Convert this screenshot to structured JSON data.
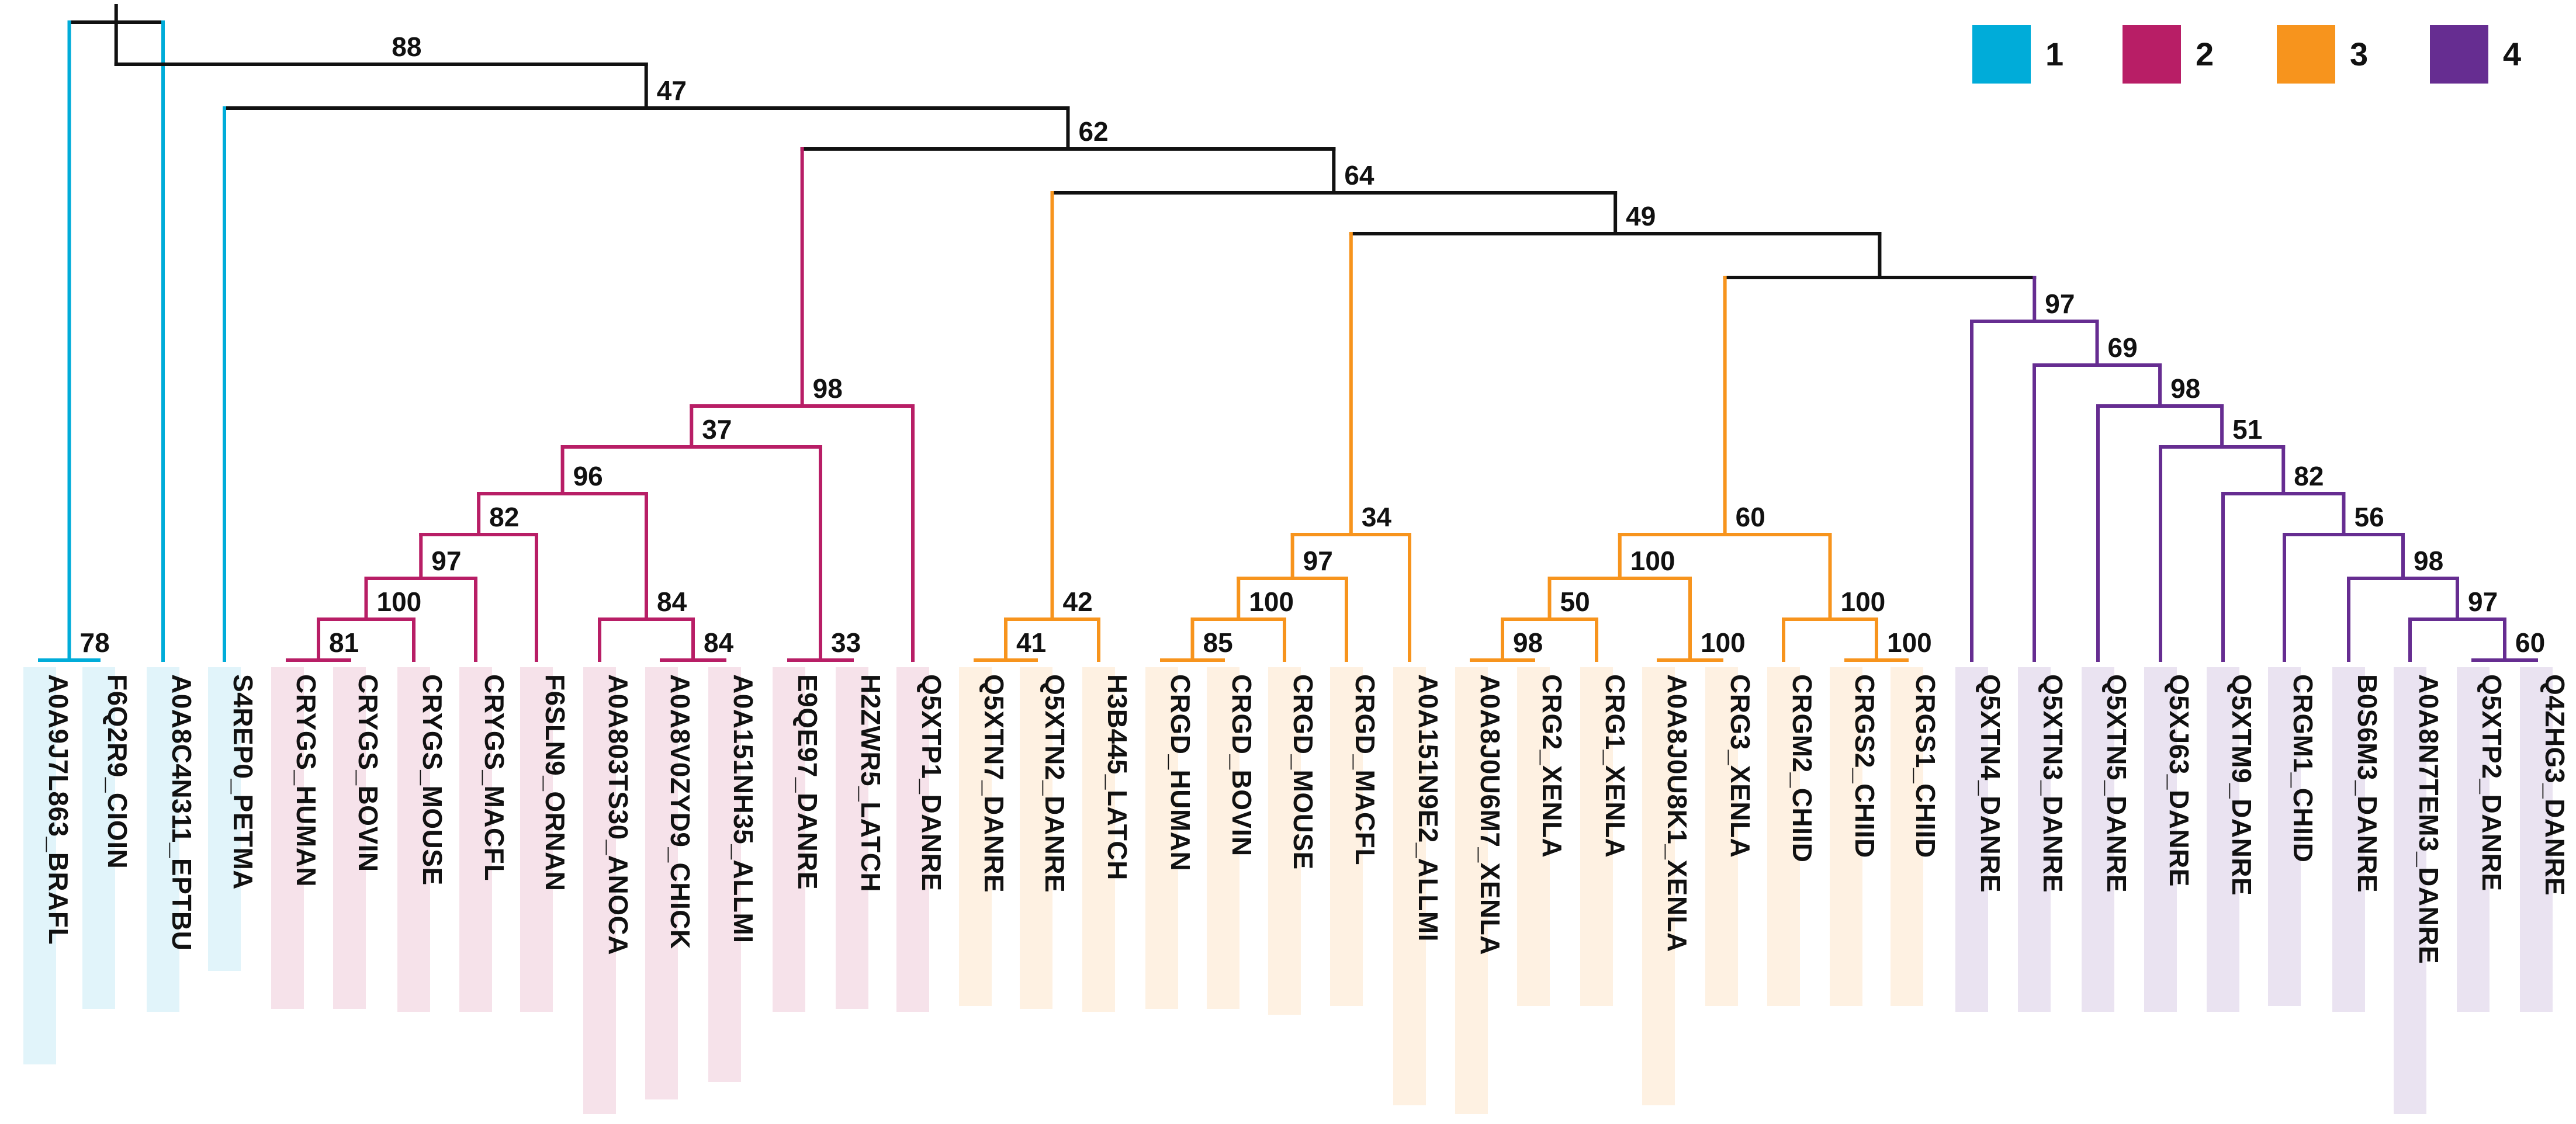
{
  "colors": {
    "1": "#00ACD9",
    "2": "#B81E66",
    "3": "#F7941D",
    "4": "#662D91",
    "black": "#111111"
  },
  "legend": [
    {
      "group": "1",
      "label": "1"
    },
    {
      "group": "2",
      "label": "2"
    },
    {
      "group": "3",
      "label": "3"
    },
    {
      "group": "4",
      "label": "4"
    }
  ],
  "leaves": [
    {
      "label": "A0A9J7L863_BRAFL",
      "group": "1"
    },
    {
      "label": "F6Q2R9_CIOIN",
      "group": "1"
    },
    {
      "label": "A0A8C4N311_EPTBU",
      "group": "1"
    },
    {
      "label": "S4REP0_PETMA",
      "group": "1"
    },
    {
      "label": "CRYGS_HUMAN",
      "group": "2"
    },
    {
      "label": "CRYGS_BOVIN",
      "group": "2"
    },
    {
      "label": "CRYGS_MOUSE",
      "group": "2"
    },
    {
      "label": "CRYGS_MACFL",
      "group": "2"
    },
    {
      "label": "F6SLN9_ORNAN",
      "group": "2"
    },
    {
      "label": "A0A803TS30_ANOCA",
      "group": "2"
    },
    {
      "label": "A0A8V0ZYD9_CHICK",
      "group": "2"
    },
    {
      "label": "A0A151NH35_ALLMI",
      "group": "2"
    },
    {
      "label": "E9QE97_DANRE",
      "group": "2"
    },
    {
      "label": "H2ZWR5_LATCH",
      "group": "2"
    },
    {
      "label": "Q5XTP1_DANRE",
      "group": "2"
    },
    {
      "label": "Q5XTN7_DANRE",
      "group": "3"
    },
    {
      "label": "Q5XTN2_DANRE",
      "group": "3"
    },
    {
      "label": "H3B445_LATCH",
      "group": "3"
    },
    {
      "label": "CRGD_HUMAN",
      "group": "3"
    },
    {
      "label": "CRGD_BOVIN",
      "group": "3"
    },
    {
      "label": "CRGD_MOUSE",
      "group": "3"
    },
    {
      "label": "CRGD_MACFL",
      "group": "3"
    },
    {
      "label": "A0A151N9E2_ALLMI",
      "group": "3"
    },
    {
      "label": "A0A8J0U6M7_XENLA",
      "group": "3"
    },
    {
      "label": "CRG2_XENLA",
      "group": "3"
    },
    {
      "label": "CRG1_XENLA",
      "group": "3"
    },
    {
      "label": "A0A8J0U8K1_XENLA",
      "group": "3"
    },
    {
      "label": "CRG3_XENLA",
      "group": "3"
    },
    {
      "label": "CRGM2_CHIID",
      "group": "3"
    },
    {
      "label": "CRGS2_CHIID",
      "group": "3"
    },
    {
      "label": "CRGS1_CHIID",
      "group": "3"
    },
    {
      "label": "Q5XTN4_DANRE",
      "group": "4"
    },
    {
      "label": "Q5XTN3_DANRE",
      "group": "4"
    },
    {
      "label": "Q5XTN5_DANRE",
      "group": "4"
    },
    {
      "label": "Q5XJ63_DANRE",
      "group": "4"
    },
    {
      "label": "Q5XTM9_DANRE",
      "group": "4"
    },
    {
      "label": "CRGM1_CHIID",
      "group": "4"
    },
    {
      "label": "B0S6M3_DANRE",
      "group": "4"
    },
    {
      "label": "A0A8N7TEM3_DANRE",
      "group": "4"
    },
    {
      "label": "Q5XTP2_DANRE",
      "group": "4"
    },
    {
      "label": "Q4ZHG3_DANRE",
      "group": "4"
    }
  ],
  "bootstraps": [
    {
      "label": "78"
    },
    {
      "label": "88"
    },
    {
      "label": "47"
    },
    {
      "label": "62"
    },
    {
      "label": "64"
    },
    {
      "label": "49"
    },
    {
      "label": "98"
    },
    {
      "label": "37"
    },
    {
      "label": "96"
    },
    {
      "label": "82"
    },
    {
      "label": "97"
    },
    {
      "label": "100"
    },
    {
      "label": "81"
    },
    {
      "label": "84"
    },
    {
      "label": "84"
    },
    {
      "label": "33"
    },
    {
      "label": "42"
    },
    {
      "label": "41"
    },
    {
      "label": "34"
    },
    {
      "label": "97"
    },
    {
      "label": "100"
    },
    {
      "label": "85"
    },
    {
      "label": "60"
    },
    {
      "label": "100"
    },
    {
      "label": "50"
    },
    {
      "label": "98"
    },
    {
      "label": "100"
    },
    {
      "label": "100"
    },
    {
      "label": "100"
    },
    {
      "label": "97"
    },
    {
      "label": "69"
    },
    {
      "label": "98"
    },
    {
      "label": "51"
    },
    {
      "label": "82"
    },
    {
      "label": "56"
    },
    {
      "label": "98"
    },
    {
      "label": "97"
    },
    {
      "label": "60"
    }
  ]
}
